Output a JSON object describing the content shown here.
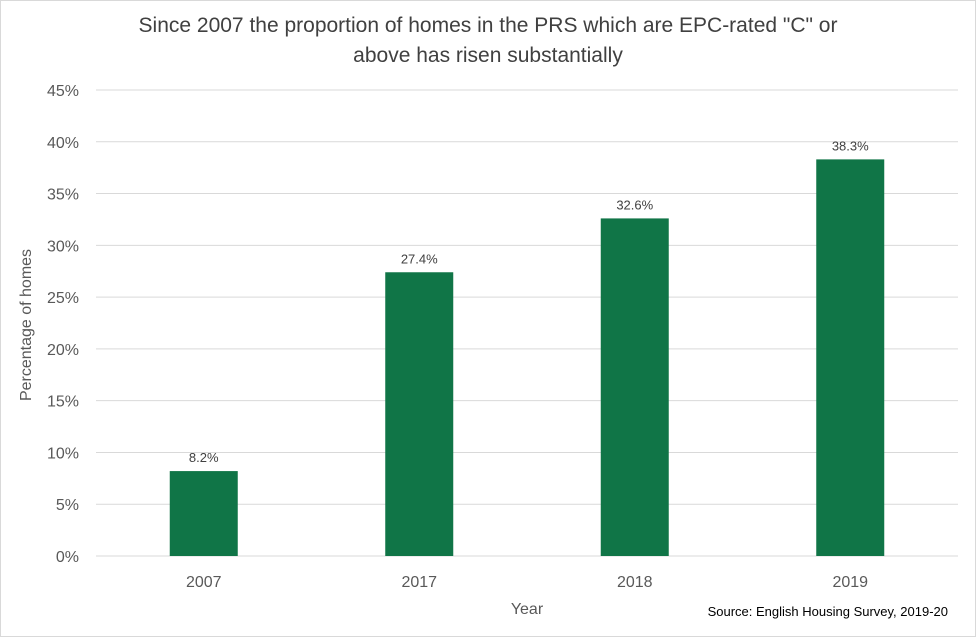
{
  "title_lines": [
    "Since 2007 the proportion of homes in the PRS which are EPC-rated \"C\" or",
    "above has risen substantially"
  ],
  "source": "Source: English Housing Survey, 2019-20",
  "colors": {
    "bar": "#107547",
    "grid": "#d9d9d9",
    "text": "#595959"
  },
  "chart_data": {
    "type": "bar",
    "title": "Since 2007 the proportion of homes in the PRS which are EPC-rated \"C\" or above has risen substantially",
    "xlabel": "Year",
    "ylabel": "Percentage of homes",
    "categories": [
      "2007",
      "2017",
      "2018",
      "2019"
    ],
    "values": [
      8.2,
      27.4,
      32.6,
      38.3
    ],
    "data_labels": [
      "8.2%",
      "27.4%",
      "32.6%",
      "38.3%"
    ],
    "ylim": [
      0,
      45
    ],
    "yticks": [
      0,
      5,
      10,
      15,
      20,
      25,
      30,
      35,
      40,
      45
    ],
    "ytick_labels": [
      "0%",
      "5%",
      "10%",
      "15%",
      "20%",
      "25%",
      "30%",
      "35%",
      "40%",
      "45%"
    ],
    "grid": true,
    "legend": false
  }
}
